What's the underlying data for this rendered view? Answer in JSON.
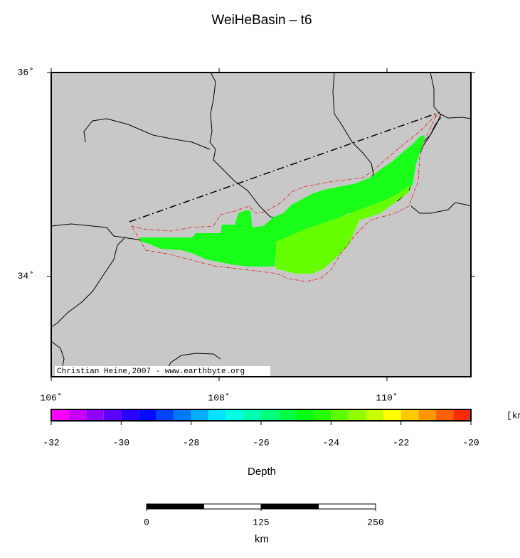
{
  "title": "WeiHeBasin – t6",
  "map": {
    "xlim": [
      106,
      111
    ],
    "ylim": [
      33,
      36
    ],
    "xticks": [
      {
        "value": 106,
        "label": "106˚"
      },
      {
        "value": 108,
        "label": "108˚"
      },
      {
        "value": 110,
        "label": "110˚"
      }
    ],
    "yticks": [
      {
        "value": 34,
        "label": "34˚"
      },
      {
        "value": 36,
        "label": "36˚"
      }
    ],
    "credit": "Christian Heine,2007 - www.earthbyte.org"
  },
  "colorbar": {
    "label": "Depth",
    "unit": "[km]",
    "lim": [
      -32,
      -20
    ],
    "ticks": [
      -32,
      -30,
      -28,
      -26,
      -24,
      -22,
      -20
    ],
    "step": 0.5
  },
  "scalebar": {
    "label": "km",
    "lim": [
      0,
      250
    ],
    "ticks": [
      0,
      125,
      250
    ]
  }
}
